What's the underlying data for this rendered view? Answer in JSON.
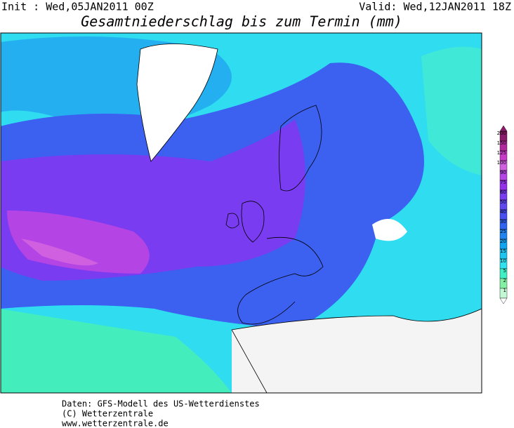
{
  "header": {
    "init": "Init : Wed,05JAN2011 00Z",
    "valid": "Valid: Wed,12JAN2011 18Z",
    "title": "Gesamtniederschlag bis zum Termin (mm)"
  },
  "legend": {
    "levels": [
      {
        "value": 200,
        "color": "#8a1a6a"
      },
      {
        "value": 150,
        "color": "#b0289c"
      },
      {
        "value": 125,
        "color": "#c63cc6"
      },
      {
        "value": 100,
        "color": "#d060e0"
      },
      {
        "value": 90,
        "color": "#b444e4"
      },
      {
        "value": 75,
        "color": "#9432ea"
      },
      {
        "value": 60,
        "color": "#7a3cf0"
      },
      {
        "value": 50,
        "color": "#6048f0"
      },
      {
        "value": 40,
        "color": "#4a50f0"
      },
      {
        "value": 30,
        "color": "#3064f0"
      },
      {
        "value": 25,
        "color": "#2084f0"
      },
      {
        "value": 20,
        "color": "#10a4f0"
      },
      {
        "value": 15,
        "color": "#20c4f0"
      },
      {
        "value": 10,
        "color": "#30e2f0"
      },
      {
        "value": 5,
        "color": "#40f0c4"
      },
      {
        "value": 2,
        "color": "#84f0a4"
      },
      {
        "value": 1,
        "color": "#c4f8d4"
      }
    ]
  },
  "footer": {
    "lines": [
      "Daten: GFS-Modell des US-Wetterdienstes",
      "(C) Wetterzentrale",
      "www.wetterzentrale.de"
    ]
  }
}
